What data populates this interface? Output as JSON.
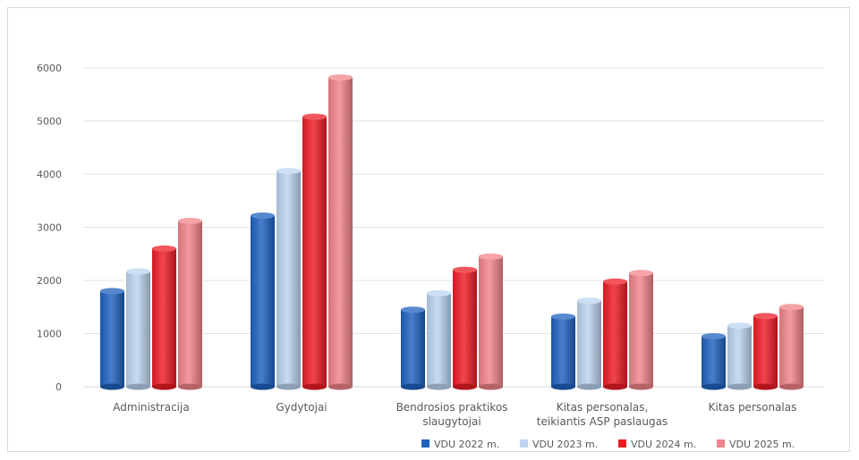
{
  "chart_data": {
    "type": "bar",
    "categories": [
      [
        "Administracija"
      ],
      [
        "Gydytojai"
      ],
      [
        "Bendrosios praktikos",
        "slaugytojai"
      ],
      [
        "Kitas personalas,",
        "teikiantis ASP paslaugas"
      ],
      [
        "Kitas personalas"
      ]
    ],
    "series": [
      {
        "name": "VDU 2022 m.",
        "color": "#1f62c0",
        "values": [
          1800,
          3220,
          1450,
          1320,
          950
        ]
      },
      {
        "name": "VDU 2023 m.",
        "color": "#bcd4f0",
        "values": [
          2170,
          4060,
          1760,
          1620,
          1150
        ]
      },
      {
        "name": "VDU 2024 m.",
        "color": "#ee1c25",
        "values": [
          2600,
          5080,
          2200,
          1980,
          1330
        ]
      },
      {
        "name": "VDU 2025 m.",
        "color": "#f2848a",
        "values": [
          3120,
          5820,
          2450,
          2140,
          1500
        ]
      }
    ],
    "y_ticks": [
      0,
      1000,
      2000,
      3000,
      4000,
      5000,
      6000
    ],
    "ylim": [
      0,
      6000
    ],
    "grid": true,
    "legend_position": "bottom-right",
    "title": "",
    "xlabel": "",
    "ylabel": ""
  }
}
